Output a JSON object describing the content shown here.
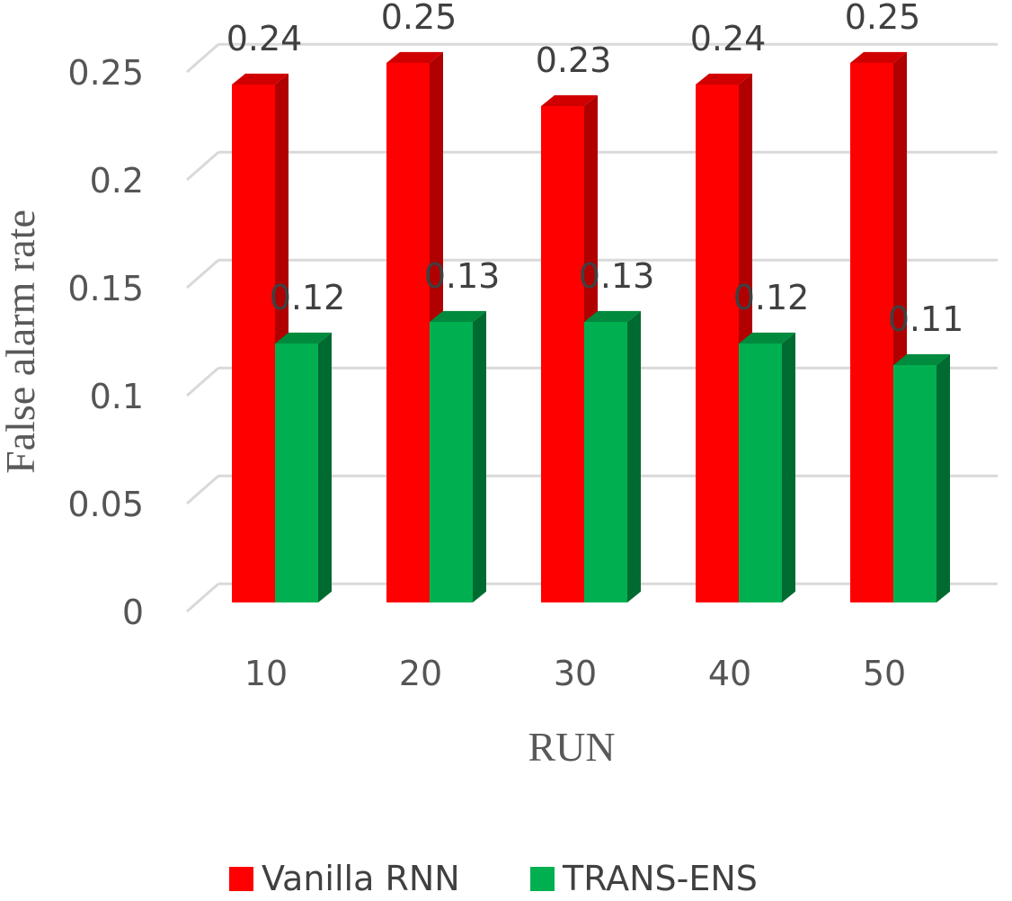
{
  "chart_data": {
    "type": "bar",
    "title": "",
    "xlabel": "RUN",
    "ylabel": "False alarm rate",
    "categories": [
      "10",
      "20",
      "30",
      "40",
      "50"
    ],
    "series": [
      {
        "name": "Vanilla RNN",
        "values": [
          0.24,
          0.25,
          0.23,
          0.24,
          0.25
        ],
        "color": "#ff0000",
        "side_color": "#b00000",
        "top_color": "#d00000"
      },
      {
        "name": "TRANS-ENS",
        "values": [
          0.12,
          0.13,
          0.13,
          0.12,
          0.11
        ],
        "color": "#00b050",
        "side_color": "#006b30",
        "top_color": "#008a3e"
      }
    ],
    "data_labels": [
      [
        "0.24",
        "0.25",
        "0.23",
        "0.24",
        "0.25"
      ],
      [
        "0.12",
        "0.13",
        "0.13",
        "0.12",
        "0.11"
      ]
    ],
    "ylim": [
      0,
      0.25
    ],
    "yticks": [
      0,
      0.05,
      0.1,
      0.15,
      0.2,
      0.25
    ],
    "ytick_labels": [
      "0",
      "0.05",
      "0.1",
      "0.15",
      "0.2",
      "0.25"
    ],
    "grid": true,
    "legend_position": "bottom",
    "style": "3d-clustered-column"
  }
}
